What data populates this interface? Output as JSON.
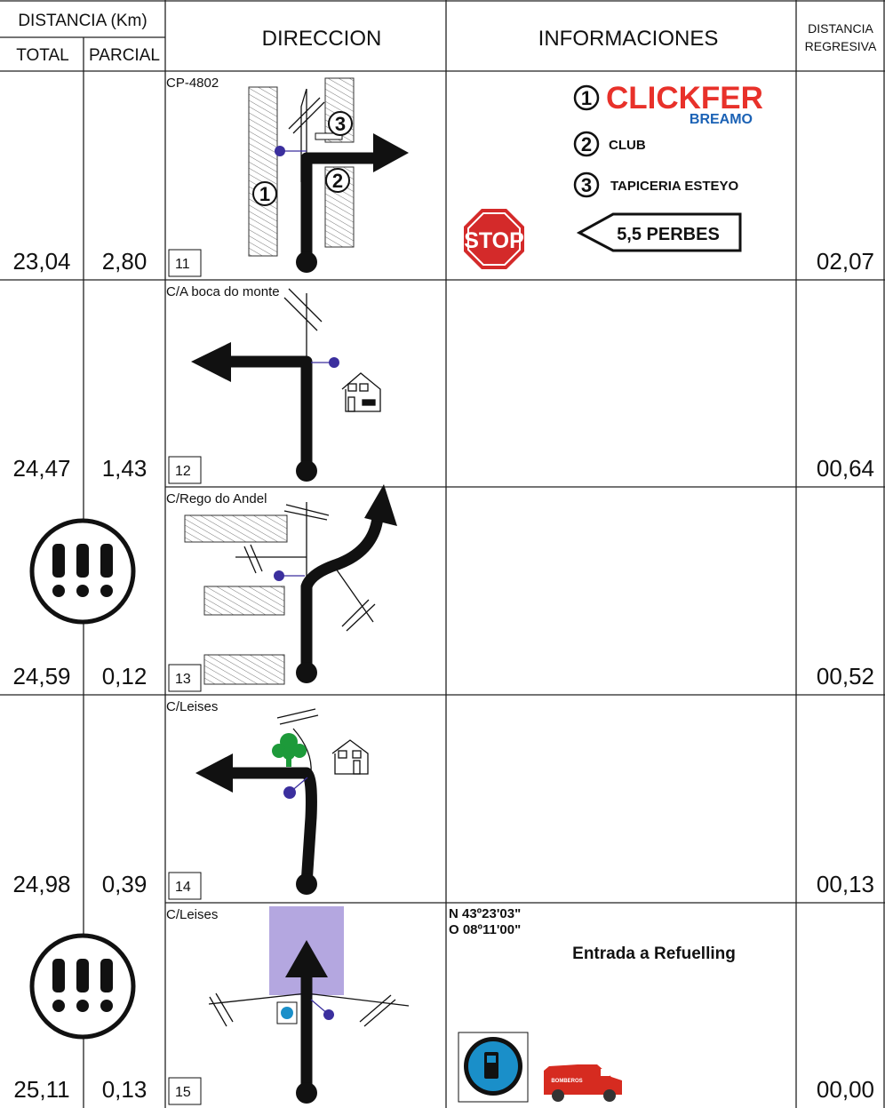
{
  "header": {
    "distance": "DISTANCIA (Km)",
    "total": "TOTAL",
    "partial": "PARCIAL",
    "direction": "DIRECCION",
    "info": "INFORMACIONES",
    "remaining": [
      "DISTANCIA",
      "REGRESIVA"
    ]
  },
  "rows": [
    {
      "number": "11",
      "road": "CP-4802",
      "total": "23,04",
      "partial": "2,80",
      "remaining": "02,07",
      "diagram_labels": [
        "1",
        "2",
        "3"
      ],
      "info": {
        "items": [
          {
            "marker": "1",
            "text": "CLICKFER",
            "subtext": "BREAMO"
          },
          {
            "marker": "2",
            "text": "CLUB"
          },
          {
            "marker": "3",
            "text": "TAPICERIA ESTEYO"
          }
        ],
        "stop": "STOP",
        "sign": "5,5 PERBES"
      }
    },
    {
      "number": "12",
      "road": "C/A boca do monte",
      "total": "24,47",
      "partial": "1,43",
      "remaining": "00,64"
    },
    {
      "number": "13",
      "road": "C/Rego do Andel",
      "total": "24,59",
      "partial": "0,12",
      "remaining": "00,52"
    },
    {
      "number": "14",
      "road": "C/Leises",
      "total": "24,98",
      "partial": "0,39",
      "remaining": "00,13"
    },
    {
      "number": "15",
      "road": "C/Leises",
      "total": "25,11",
      "partial": "0,13",
      "remaining": "00,00",
      "info": {
        "coords": [
          "N 43º23'03\"",
          "O 08º11'00\""
        ],
        "note": "Entrada a Refuelling",
        "vehicle": "BOMBEROS"
      }
    }
  ]
}
